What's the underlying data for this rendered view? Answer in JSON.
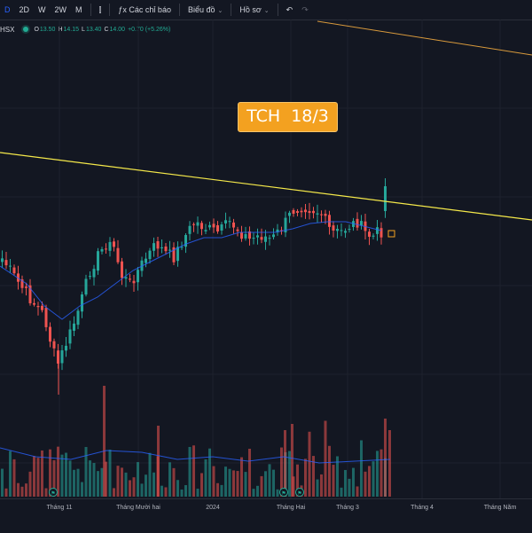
{
  "toolbar": {
    "items": [
      {
        "name": "interval-d-button",
        "label": "D",
        "blue": true
      },
      {
        "name": "interval-2d-button",
        "label": "2D"
      },
      {
        "name": "interval-w-button",
        "label": "W"
      },
      {
        "name": "interval-2w-button",
        "label": "2W"
      },
      {
        "name": "interval-m-button",
        "label": "M"
      },
      {
        "sep": true
      },
      {
        "name": "candle-style-button",
        "label": "⫿"
      },
      {
        "sep": true
      },
      {
        "name": "indicators-button",
        "label": "Các chỉ báo",
        "icon": "ƒx"
      },
      {
        "sep": true
      },
      {
        "name": "layouts-button",
        "label": "Biểu đồ",
        "chev": true
      },
      {
        "sep": true
      },
      {
        "name": "profile-button",
        "label": "Hồ sơ",
        "chev": true
      },
      {
        "sep": true
      },
      {
        "name": "undo-button",
        "label": "↶"
      },
      {
        "name": "redo-button",
        "label": "↷",
        "dim": true
      }
    ]
  },
  "legend": {
    "symbol": "HSX",
    "open_label": "O",
    "open": "13.50",
    "high_label": "H",
    "high": "14.15",
    "low_label": "L",
    "low": "13.40",
    "close_label": "C",
    "close": "14.00",
    "change": "+0.70 (+5.26%)"
  },
  "annotation": {
    "text": "TCH  18/3",
    "color": "#f3a120"
  },
  "colors": {
    "background": "#131722",
    "up": "#26a69a",
    "down": "#ef5350",
    "ma": "#2962ff",
    "trendline": "#f5e94a",
    "trendline2": "#d99a3c"
  },
  "x_axis": {
    "labels": [
      "Tháng 11",
      "Tháng Mười hai",
      "2024",
      "Tháng Hai",
      "Tháng 3",
      "Tháng 4",
      "Tháng Năm"
    ]
  },
  "chart_data": {
    "type": "candlestick",
    "symbol": "TCH",
    "exchange": "HSX",
    "interval": "1D",
    "last_bar": {
      "open": 13.5,
      "high": 14.15,
      "low": 13.4,
      "close": 14.0,
      "change": 0.7,
      "change_pct": 5.26
    },
    "trendline": "descending resistance line, broken upward by the last bar",
    "markers": {
      "dividend_flags": 3
    }
  }
}
